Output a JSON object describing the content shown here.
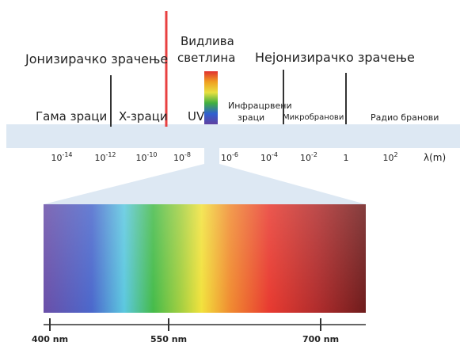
{
  "headings": {
    "ionizing": "Јонизирачко зрачење",
    "visible": [
      "Видлива",
      "светлина"
    ],
    "non_ionizing": "Нејонизирачко зрачење"
  },
  "regions": [
    {
      "label": [
        "Гама зраци"
      ]
    },
    {
      "label": [
        "X-зраци"
      ]
    },
    {
      "label": [
        "UV"
      ]
    },
    {
      "label": [
        "Инфрацрвени",
        "зраци"
      ]
    },
    {
      "label": [
        "Микробранови"
      ]
    },
    {
      "label": [
        "Радио бранови"
      ]
    }
  ],
  "scale": [
    {
      "base": "10",
      "exp": "-14"
    },
    {
      "base": "10",
      "exp": "-12"
    },
    {
      "base": "10",
      "exp": "-10"
    },
    {
      "base": "10",
      "exp": "-8"
    },
    {
      "base": "10",
      "exp": "-6"
    },
    {
      "base": "10",
      "exp": "-4"
    },
    {
      "base": "10",
      "exp": "-2"
    },
    {
      "base": "1"
    },
    {
      "base": "10",
      "exp": "2"
    }
  ],
  "unit": "λ(m)",
  "visible_ticks": [
    "400 nm",
    "550 nm",
    "700 nm"
  ]
}
